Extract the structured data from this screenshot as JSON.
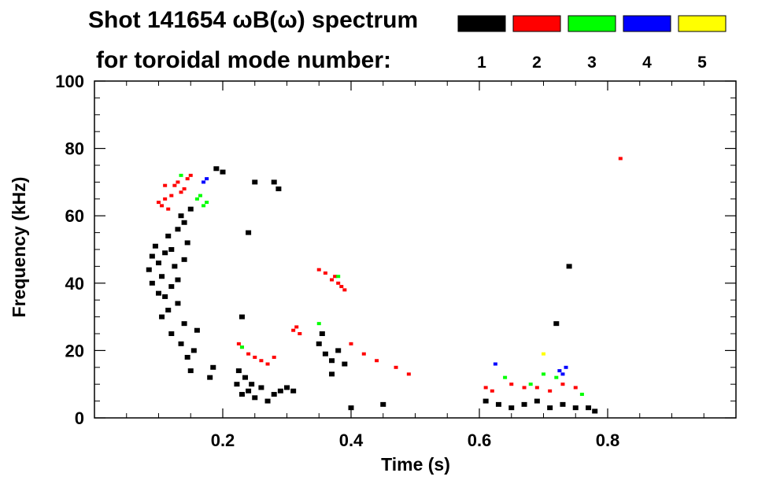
{
  "chart_data": {
    "type": "scatter",
    "title_line1": "Shot 141654 ωB(ω) spectrum",
    "title_line2": "for toroidal mode number:",
    "xlabel": "Time (s)",
    "ylabel": "Frequency (kHz)",
    "xlim": [
      0.0,
      1.0
    ],
    "ylim": [
      0,
      100
    ],
    "xticks": [
      0.2,
      0.4,
      0.6,
      0.8
    ],
    "xtick_labels": [
      "0.2",
      "0.4",
      "0.6",
      "0.8"
    ],
    "yticks": [
      0,
      20,
      40,
      60,
      80,
      100
    ],
    "ytick_labels": [
      "0",
      "20",
      "40",
      "60",
      "80",
      "100"
    ],
    "legend": [
      {
        "label": "1",
        "color": "#000000"
      },
      {
        "label": "2",
        "color": "#ff0000"
      },
      {
        "label": "3",
        "color": "#00ff00"
      },
      {
        "label": "4",
        "color": "#0000ff"
      },
      {
        "label": "5",
        "color": "#ffff00"
      }
    ],
    "series": [
      {
        "name": "n=1",
        "color": "#000000",
        "points": [
          [
            0.085,
            44
          ],
          [
            0.09,
            48
          ],
          [
            0.095,
            51
          ],
          [
            0.1,
            46
          ],
          [
            0.105,
            42
          ],
          [
            0.11,
            49
          ],
          [
            0.115,
            54
          ],
          [
            0.12,
            50
          ],
          [
            0.125,
            45
          ],
          [
            0.13,
            56
          ],
          [
            0.135,
            60
          ],
          [
            0.14,
            58
          ],
          [
            0.145,
            52
          ],
          [
            0.15,
            62
          ],
          [
            0.09,
            40
          ],
          [
            0.1,
            37
          ],
          [
            0.11,
            36
          ],
          [
            0.12,
            39
          ],
          [
            0.13,
            41
          ],
          [
            0.14,
            47
          ],
          [
            0.105,
            30
          ],
          [
            0.115,
            32
          ],
          [
            0.13,
            34
          ],
          [
            0.14,
            28
          ],
          [
            0.12,
            25
          ],
          [
            0.135,
            22
          ],
          [
            0.145,
            18
          ],
          [
            0.15,
            14
          ],
          [
            0.155,
            20
          ],
          [
            0.16,
            26
          ],
          [
            0.18,
            12
          ],
          [
            0.185,
            15
          ],
          [
            0.19,
            74
          ],
          [
            0.2,
            73
          ],
          [
            0.222,
            10
          ],
          [
            0.23,
            7
          ],
          [
            0.24,
            8
          ],
          [
            0.25,
            6
          ],
          [
            0.26,
            9
          ],
          [
            0.27,
            5
          ],
          [
            0.28,
            7
          ],
          [
            0.29,
            8
          ],
          [
            0.3,
            9
          ],
          [
            0.31,
            8
          ],
          [
            0.225,
            14
          ],
          [
            0.235,
            12
          ],
          [
            0.245,
            10
          ],
          [
            0.23,
            30
          ],
          [
            0.24,
            55
          ],
          [
            0.25,
            70
          ],
          [
            0.35,
            22
          ],
          [
            0.36,
            19
          ],
          [
            0.37,
            17
          ],
          [
            0.38,
            20
          ],
          [
            0.39,
            16
          ],
          [
            0.355,
            25
          ],
          [
            0.37,
            13
          ],
          [
            0.28,
            70
          ],
          [
            0.287,
            68
          ],
          [
            0.4,
            3
          ],
          [
            0.45,
            4
          ],
          [
            0.61,
            5
          ],
          [
            0.63,
            4
          ],
          [
            0.65,
            3
          ],
          [
            0.67,
            4
          ],
          [
            0.69,
            5
          ],
          [
            0.71,
            3
          ],
          [
            0.73,
            4
          ],
          [
            0.75,
            3
          ],
          [
            0.77,
            3
          ],
          [
            0.78,
            2
          ],
          [
            0.74,
            45
          ],
          [
            0.72,
            28
          ]
        ]
      },
      {
        "name": "n=2",
        "color": "#ff0000",
        "points": [
          [
            0.1,
            64
          ],
          [
            0.105,
            63
          ],
          [
            0.11,
            65
          ],
          [
            0.115,
            62
          ],
          [
            0.12,
            66
          ],
          [
            0.125,
            69
          ],
          [
            0.13,
            70
          ],
          [
            0.135,
            67
          ],
          [
            0.14,
            68
          ],
          [
            0.145,
            71
          ],
          [
            0.15,
            72
          ],
          [
            0.11,
            69
          ],
          [
            0.225,
            22
          ],
          [
            0.23,
            21
          ],
          [
            0.24,
            19
          ],
          [
            0.25,
            18
          ],
          [
            0.26,
            17
          ],
          [
            0.27,
            16
          ],
          [
            0.28,
            18
          ],
          [
            0.31,
            26
          ],
          [
            0.315,
            27
          ],
          [
            0.32,
            25
          ],
          [
            0.35,
            44
          ],
          [
            0.36,
            43
          ],
          [
            0.37,
            41
          ],
          [
            0.375,
            42
          ],
          [
            0.38,
            40
          ],
          [
            0.385,
            39
          ],
          [
            0.39,
            38
          ],
          [
            0.4,
            22
          ],
          [
            0.42,
            19
          ],
          [
            0.44,
            17
          ],
          [
            0.47,
            15
          ],
          [
            0.49,
            13
          ],
          [
            0.61,
            9
          ],
          [
            0.62,
            8
          ],
          [
            0.65,
            10
          ],
          [
            0.67,
            9
          ],
          [
            0.69,
            9
          ],
          [
            0.71,
            8
          ],
          [
            0.73,
            10
          ],
          [
            0.75,
            9
          ],
          [
            0.82,
            77
          ]
        ]
      },
      {
        "name": "n=3",
        "color": "#00ff00",
        "points": [
          [
            0.135,
            72
          ],
          [
            0.16,
            65
          ],
          [
            0.165,
            66
          ],
          [
            0.17,
            63
          ],
          [
            0.175,
            64
          ],
          [
            0.23,
            21
          ],
          [
            0.35,
            28
          ],
          [
            0.38,
            42
          ],
          [
            0.64,
            12
          ],
          [
            0.68,
            10
          ],
          [
            0.7,
            13
          ],
          [
            0.72,
            12
          ],
          [
            0.76,
            7
          ]
        ]
      },
      {
        "name": "n=4",
        "color": "#0000ff",
        "points": [
          [
            0.175,
            71
          ],
          [
            0.17,
            70
          ],
          [
            0.625,
            16
          ],
          [
            0.725,
            14
          ],
          [
            0.73,
            13
          ],
          [
            0.735,
            15
          ]
        ]
      },
      {
        "name": "n=5",
        "color": "#ffff00",
        "points": [
          [
            0.7,
            19
          ]
        ]
      }
    ]
  }
}
